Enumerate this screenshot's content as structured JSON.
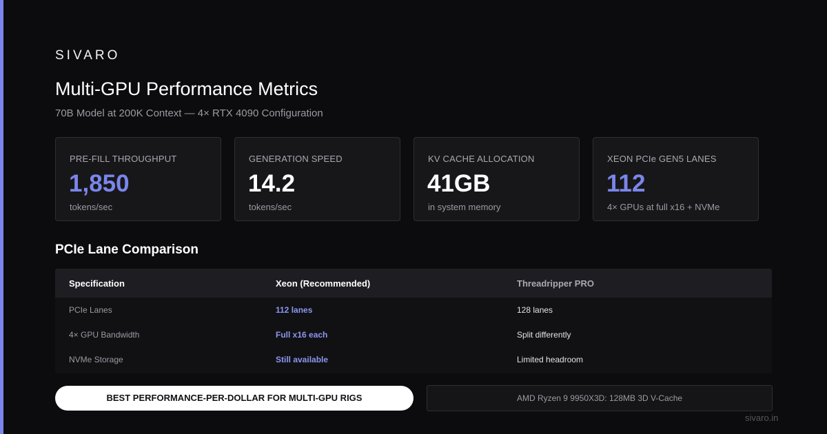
{
  "brand": "SIVARO",
  "header": {
    "title": "Multi-GPU Performance Metrics",
    "subtitle": "70B Model at 200K Context — 4× RTX 4090 Configuration"
  },
  "metrics": [
    {
      "label": "PRE-FILL THROUGHPUT",
      "value": "1,850",
      "unit": "tokens/sec",
      "accent": true
    },
    {
      "label": "GENERATION SPEED",
      "value": "14.2",
      "unit": "tokens/sec",
      "accent": false
    },
    {
      "label": "KV CACHE ALLOCATION",
      "value": "41GB",
      "unit": "in system memory",
      "accent": false
    },
    {
      "label": "XEON PCIe GEN5 LANES",
      "value": "112",
      "unit": "4× GPUs at full x16 + NVMe",
      "accent": true
    }
  ],
  "comparison": {
    "title": "PCIe Lane Comparison",
    "headers": [
      "Specification",
      "Xeon (Recommended)",
      "Threadripper PRO"
    ],
    "rows": [
      [
        "PCIe Lanes",
        "112 lanes",
        "128 lanes"
      ],
      [
        "4× GPU Bandwidth",
        "Full x16 each",
        "Split differently"
      ],
      [
        "NVMe Storage",
        "Still available",
        "Limited headroom"
      ]
    ]
  },
  "cta": "BEST PERFORMANCE-PER-DOLLAR FOR MULTI-GPU RIGS",
  "note": "AMD Ryzen 9 9950X3D: 128MB 3D V-Cache",
  "footer": "sivaro.in",
  "colors": {
    "accent": "#7b86ea",
    "background": "#0c0c0e",
    "card": "#17171a"
  }
}
